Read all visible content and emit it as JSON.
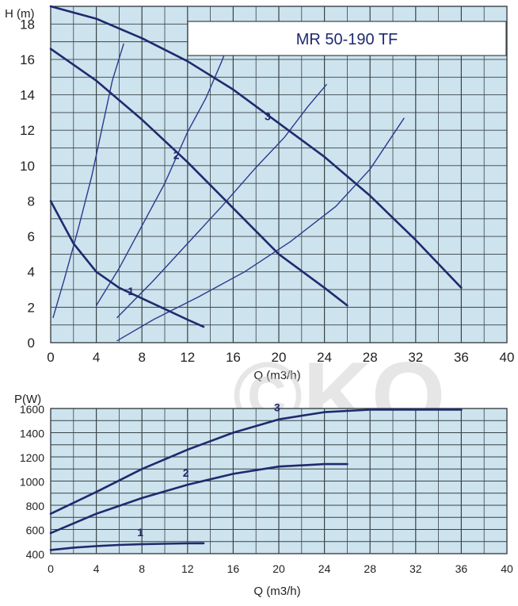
{
  "colors": {
    "grid_bg": "#cde3ee",
    "grid_line": "#3a4347",
    "curve": "#1f2a6e",
    "system": "#2b3a8c",
    "watermark": "#c9c9c9"
  },
  "watermark_text": "©KO",
  "chart_data": [
    {
      "type": "line",
      "title": "MR 50-190 TF",
      "xlabel": "Q (m3/h)",
      "ylabel": "H (m)",
      "xlim": [
        0,
        40
      ],
      "ylim": [
        0,
        19
      ],
      "xticks": [
        "0",
        "4",
        "8",
        "12",
        "16",
        "20",
        "24",
        "28",
        "32",
        "36",
        "40"
      ],
      "yticks": [
        "0",
        "2",
        "4",
        "6",
        "8",
        "10",
        "12",
        "14",
        "16",
        "18"
      ],
      "grid": true,
      "series": [
        {
          "name": "1",
          "x": [
            0,
            2,
            4,
            6,
            8,
            10,
            12,
            13.4
          ],
          "y": [
            8,
            5.6,
            4.0,
            3.1,
            2.5,
            1.9,
            1.3,
            0.9
          ]
        },
        {
          "name": "2",
          "x": [
            0,
            4,
            8,
            12,
            16,
            20,
            24,
            26
          ],
          "y": [
            16.6,
            14.8,
            12.6,
            10.2,
            7.6,
            5.0,
            3.1,
            2.1
          ]
        },
        {
          "name": "3",
          "x": [
            0,
            4,
            8,
            12,
            16,
            20,
            24,
            28,
            32,
            36
          ],
          "y": [
            19,
            18.3,
            17.2,
            15.9,
            14.3,
            12.4,
            10.5,
            8.3,
            5.8,
            3.1
          ]
        }
      ],
      "system_curves": [
        {
          "x": [
            0.2,
            1.2,
            2.4,
            3.6,
            4.6,
            5.4,
            6.4
          ],
          "y": [
            1.4,
            3.6,
            6.4,
            9.4,
            12.4,
            14.8,
            16.9
          ]
        },
        {
          "x": [
            4.0,
            6.0,
            8.0,
            10.0,
            12.0,
            13.6,
            15.0,
            15.6
          ],
          "y": [
            2.1,
            4.2,
            6.6,
            9.0,
            11.9,
            13.8,
            15.9,
            16.9
          ]
        },
        {
          "x": [
            5.8,
            9.0,
            12.0,
            15.0,
            18.0,
            20.5,
            22.5,
            24.2
          ],
          "y": [
            1.4,
            3.5,
            5.6,
            7.7,
            9.9,
            11.6,
            13.3,
            14.6
          ]
        },
        {
          "x": [
            5.8,
            9.0,
            13.0,
            17.0,
            21.0,
            25.0,
            28.0,
            31.0
          ],
          "y": [
            0.1,
            1.3,
            2.6,
            4.0,
            5.7,
            7.7,
            9.8,
            12.7
          ]
        }
      ]
    },
    {
      "type": "line",
      "xlabel": "Q (m3/h)",
      "ylabel": "P(W)",
      "xlim": [
        0,
        40
      ],
      "ylim": [
        400,
        1600
      ],
      "xticks": [
        "0",
        "4",
        "8",
        "12",
        "16",
        "20",
        "24",
        "28",
        "32",
        "36",
        "40"
      ],
      "yticks": [
        "400",
        "600",
        "800",
        "1000",
        "1200",
        "1400",
        "1600"
      ],
      "grid": true,
      "series": [
        {
          "name": "1",
          "x": [
            0,
            2,
            4,
            6,
            8,
            10,
            12,
            13.4
          ],
          "y": [
            430,
            450,
            462,
            472,
            478,
            482,
            485,
            486
          ]
        },
        {
          "name": "2",
          "x": [
            0,
            4,
            8,
            12,
            16,
            20,
            24,
            26
          ],
          "y": [
            570,
            730,
            860,
            970,
            1060,
            1120,
            1140,
            1140
          ]
        },
        {
          "name": "3",
          "x": [
            0,
            4,
            8,
            12,
            16,
            20,
            24,
            28,
            32,
            36
          ],
          "y": [
            730,
            910,
            1100,
            1260,
            1400,
            1510,
            1570,
            1590,
            1590,
            1590
          ]
        }
      ]
    }
  ]
}
